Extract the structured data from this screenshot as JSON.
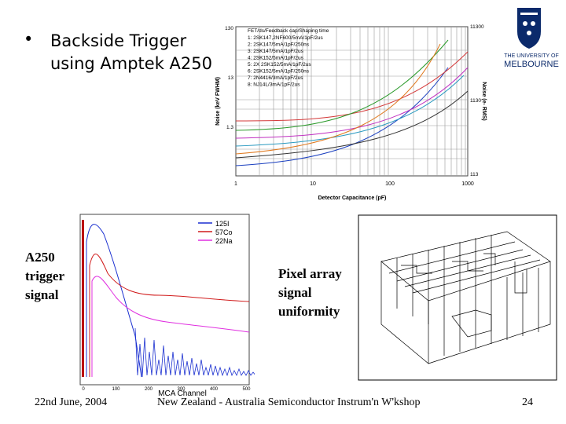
{
  "bullet": "Backside Trigger using Amptek A250",
  "left_label": "A250 trigger signal",
  "right_label": "Pixel array signal uniformity",
  "logo": {
    "line1": "THE UNIVERSITY OF",
    "line2": "MELBOURNE"
  },
  "noise_plot": {
    "title": "FET/ds/Feedback cap/Shaping time",
    "legend": [
      "1: 2SK147,2NF600/5mA/1pF/2us",
      "2: 2SK147/5mA/1pF/250ns",
      "3: 2SK147/5mA/1pF/2us",
      "4: 2SK152/5mA/1pF/2us",
      "5: 2X 2SK152/5mA/1pF/2us",
      "6: 2SK152/5mA/1pF/250ns",
      "7: 2N4416/3mA/1pF/2us",
      "8: NJ14L/3mA/1pF/2us"
    ],
    "x_label": "Detector Capacitance (pF)",
    "y_label": "Noise (keV FWHM)",
    "y2_label": "Noise (e- RMS)",
    "x_ticks": [
      "1",
      "10",
      "100",
      "1000"
    ],
    "y_ticks": [
      "130",
      "13",
      "1.3"
    ],
    "y2_ticks": [
      "11300",
      "1130",
      "113"
    ]
  },
  "mca_plot": {
    "x_label": "MCA Channel",
    "legend": [
      "125I",
      "57Co",
      "22Na"
    ],
    "x_ticks": [
      "0",
      "100",
      "200",
      "300",
      "400",
      "500"
    ]
  },
  "footer": {
    "date": "22nd June, 2004",
    "event": "New Zealand - Australia Semiconductor Instrum'n W'kshop",
    "page": "24"
  }
}
